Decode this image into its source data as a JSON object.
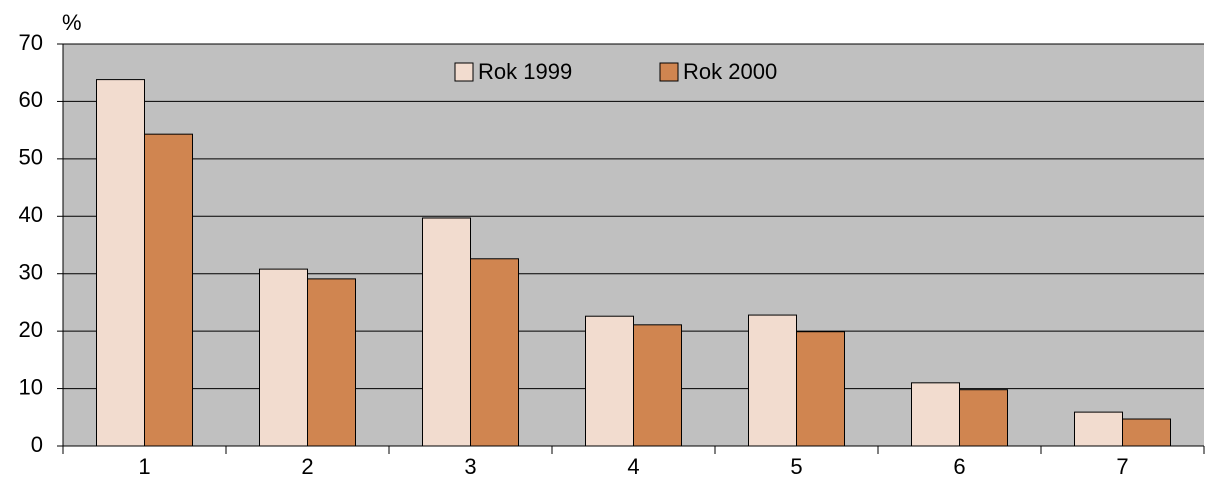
{
  "chart_data": {
    "type": "bar",
    "y_label": "%",
    "categories": [
      "1",
      "2",
      "3",
      "4",
      "5",
      "6",
      "7"
    ],
    "series": [
      {
        "name": "Rok 1999",
        "color": "#f2dccf",
        "values": [
          63.8,
          30.8,
          39.7,
          22.6,
          22.8,
          11.0,
          5.9
        ]
      },
      {
        "name": "Rok 2000",
        "color": "#d08550",
        "values": [
          54.3,
          29.1,
          32.6,
          21.1,
          19.9,
          9.8,
          4.7
        ]
      }
    ],
    "ylim": [
      0,
      70
    ],
    "yticks": [
      0,
      10,
      20,
      30,
      40,
      50,
      60,
      70
    ],
    "grid": true,
    "legend": "top"
  }
}
